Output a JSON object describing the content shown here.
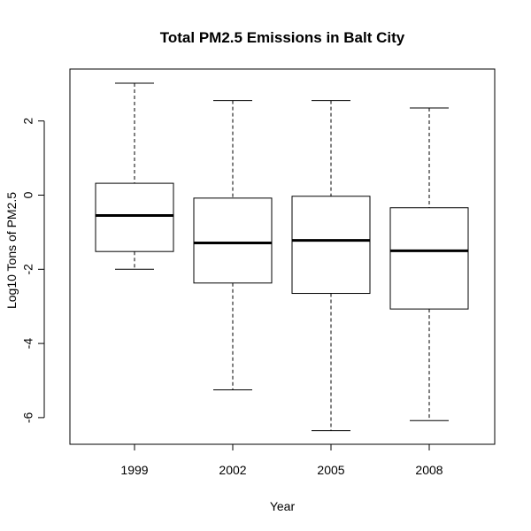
{
  "chart_data": {
    "type": "boxplot",
    "title": "Total PM2.5 Emissions in Balt City",
    "xlabel": "Year",
    "ylabel": "Log10 Tons of PM2.5",
    "categories": [
      "1999",
      "2002",
      "2005",
      "2008"
    ],
    "boxes": [
      {
        "category": "1999",
        "whisker_low": -2.0,
        "q1": -1.52,
        "median": -0.55,
        "q3": 0.32,
        "whisker_high": 3.02
      },
      {
        "category": "2002",
        "whisker_low": -5.25,
        "q1": -2.37,
        "median": -1.29,
        "q3": -0.08,
        "whisker_high": 2.55
      },
      {
        "category": "2005",
        "whisker_low": -6.35,
        "q1": -2.65,
        "median": -1.22,
        "q3": -0.03,
        "whisker_high": 2.55
      },
      {
        "category": "2008",
        "whisker_low": -6.08,
        "q1": -3.07,
        "median": -1.5,
        "q3": -0.34,
        "whisker_high": 2.35
      }
    ],
    "y_ticks": [
      -6,
      -4,
      -2,
      0,
      2
    ],
    "y_tick_labels": [
      "-6",
      "-4",
      "-2",
      "0",
      "2"
    ],
    "ylim": [
      -6.72,
      3.0
    ],
    "grid": false,
    "legend": "none"
  }
}
